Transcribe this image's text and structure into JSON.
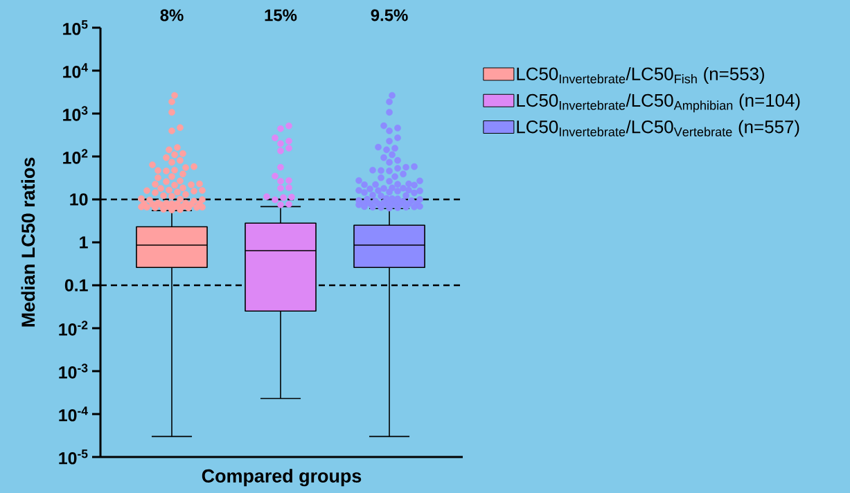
{
  "chart_data": {
    "type": "box",
    "xlabel": "Compared groups",
    "ylabel": "Median LC50 ratios",
    "categories": [
      null,
      null,
      null
    ],
    "series": [
      {
        "name": "\\mathrm{LC50}_{\\mathrm{Invertebrate}}\\mbox{/}\\mathrm{LC50}_{\\mathrm{Fish}}\\mbox{ (n=553)}",
        "color": "#ffa0a0",
        "boxes": [
          {
            "low": 3e-05,
            "q1": 0.26,
            "median": 0.86,
            "q3": 2.3,
            "high": 5.5,
            "outliers": [
              2650,
              1880,
              1070,
              470,
              395,
              162,
              143,
              117,
              110,
              94,
              81,
              73,
              64,
              58,
              55,
              48,
              47,
              46,
              39,
              34,
              32,
              27,
              26,
              22.5,
              22,
              21.5,
              23,
              18.5,
              18,
              16.5,
              16,
              15.6,
              16.2,
              14.8,
              14.3,
              13,
              12.2,
              11.8,
              10.4,
              10.1,
              9.9,
              9.7,
              9.2,
              8.3,
              8.1,
              8.0,
              7.9,
              7.8,
              7.7,
              7.6,
              8.2,
              7.9,
              7.7,
              6.9,
              6.8,
              6.7,
              6.6,
              6.5,
              6.4,
              6.7,
              6.6,
              6.3,
              5.9,
              5.8,
              5.7
            ]
          },
          null,
          null
        ]
      },
      {
        "name": "\\mathrm{LC50}_{\\mathrm{Invertebrate}}\\mbox{/}\\mathrm{LC50}_{\\mathrm{Amphibian}}\\mbox{ (n=104)}",
        "color": "#dd88f5",
        "boxes": [
          null,
          {
            "low": 0.00023,
            "q1": 0.025,
            "median": 0.64,
            "q3": 2.8,
            "high": 6.8,
            "outliers": [
              515,
              445,
              271,
              228,
              199,
              156,
              135,
              56,
              35,
              27.5,
              26.5,
              18.8,
              18.2,
              11.6,
              11.3,
              11.0,
              9.8,
              7.7,
              7.5
            ]
          },
          null
        ]
      },
      {
        "name": "\\mathrm{LC50}_{\\mathrm{Invertebrate}}\\mbox{/}\\mathrm{LC50}_{\\mathrm{Vertebrate}}\\mbox{ (n=557)}",
        "color": "#8c8cff",
        "boxes": [
          null,
          null,
          {
            "low": 3e-05,
            "q1": 0.26,
            "median": 0.86,
            "q3": 2.5,
            "high": 6.1,
            "outliers": [
              2650,
              1880,
              1070,
              520,
              460,
              395,
              272,
              228,
              165,
              155,
              143,
              110,
              94,
              81,
              73,
              58,
              56,
              53,
              48,
              47,
              46,
              39,
              34,
              32,
              27.5,
              27,
              26.5,
              22.5,
              22,
              21.5,
              23,
              22.2,
              18.5,
              18,
              17.5,
              18.2,
              16.5,
              16,
              15.6,
              16.2,
              15.8,
              14.8,
              14.5,
              14.2,
              12.6,
              12.3,
              12,
              10.5,
              10.3,
              10.1,
              10.0,
              10.4,
              9.4,
              9.2,
              9.0,
              9.3,
              8.4,
              8.2,
              8.1,
              8.0,
              7.9,
              7.8,
              7.7,
              7.6,
              8.3,
              7.9,
              7.5,
              8.0,
              6.9,
              6.8,
              6.7,
              6.6,
              6.5,
              6.4,
              6.6,
              6.3
            ]
          }
        ]
      }
    ],
    "annotations": [
      "8%",
      "15%",
      "9.5%"
    ],
    "ylim": [
      1e-05,
      100000
    ],
    "yticks": [
      {
        "value": 1e-05,
        "label": "10$^{-5}$"
      },
      {
        "value": 0.0001,
        "label": "10$^{-4}$"
      },
      {
        "value": 0.001,
        "label": "10$^{-3}$"
      },
      {
        "value": 0.01,
        "label": "10$^{-2}$"
      },
      0.1,
      1,
      10,
      {
        "value": 100,
        "label": "10$^{2}$"
      },
      {
        "value": 1000,
        "label": "10$^{3}$"
      },
      {
        "value": 10000,
        "label": "10$^{4}$"
      },
      {
        "value": 100000,
        "label": "10$^{5}$"
      }
    ],
    "log": true,
    "ref_lines": [
      {
        "axis": "y",
        "value": 10,
        "line_style": "dashed",
        "color": "#000000"
      },
      {
        "axis": "y",
        "value": 0.1,
        "line_style": "dashed",
        "color": "#000000"
      }
    ],
    "legend": "right",
    "marker": "circle"
  }
}
